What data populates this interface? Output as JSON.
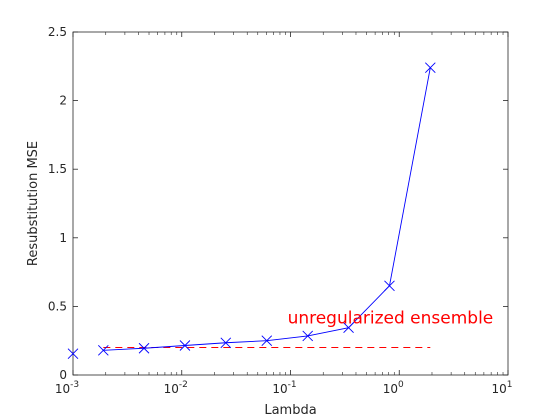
{
  "chart_data": {
    "type": "line",
    "xlabel": "Lambda",
    "ylabel": "Resubstitution MSE",
    "xscale": "log",
    "xlim": [
      0.001,
      10
    ],
    "ylim": [
      0,
      2.5
    ],
    "grid": false,
    "x_ticks": [
      0.001,
      0.01,
      0.1,
      1,
      10
    ],
    "x_tick_labels": [
      {
        "base": "10",
        "exp": "-3"
      },
      {
        "base": "10",
        "exp": "-2"
      },
      {
        "base": "10",
        "exp": "-1"
      },
      {
        "base": "10",
        "exp": "0"
      },
      {
        "base": "10",
        "exp": "1"
      }
    ],
    "y_ticks": [
      0,
      0.5,
      1,
      1.5,
      2,
      2.5
    ],
    "y_tick_labels": [
      "0",
      "0.5",
      "1",
      "1.5",
      "2",
      "2.5"
    ],
    "series": [
      {
        "color": "#0000ff",
        "marker": "x",
        "line": "solid",
        "x": [
          0.0019,
          0.0045,
          0.0107,
          0.0254,
          0.0605,
          0.144,
          0.342,
          0.813,
          1.93
        ],
        "y": [
          0.18,
          0.195,
          0.215,
          0.235,
          0.25,
          0.285,
          0.345,
          0.65,
          2.24
        ]
      },
      {
        "color": "#0000ff",
        "marker": "x",
        "line": "none",
        "x": [
          0.001
        ],
        "y": [
          0.155
        ]
      }
    ],
    "reference_line": {
      "color": "#ff0000",
      "style": "dashed",
      "y": 0.2,
      "x_range": [
        0.0019,
        1.93
      ]
    },
    "annotations": [
      {
        "text": "unregularized ensemble",
        "color": "#ff0000",
        "x": 0.094,
        "y": 0.345
      }
    ]
  }
}
